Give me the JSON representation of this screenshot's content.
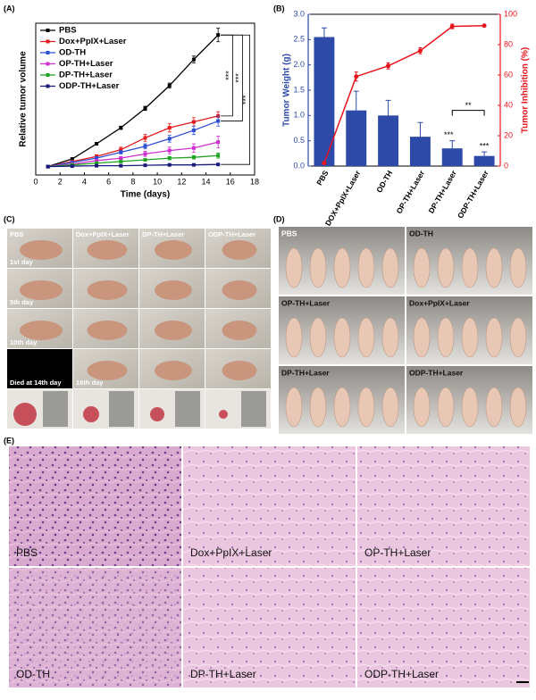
{
  "chart_data": [
    {
      "type": "line",
      "panel": "(A)",
      "xlabel": "Time (days)",
      "ylabel": "Relative tumor volume",
      "x": [
        1,
        3,
        5,
        7,
        9,
        11,
        13,
        15
      ],
      "xlim": [
        0,
        18
      ],
      "xticks": [
        0,
        2,
        4,
        6,
        8,
        10,
        12,
        14,
        16,
        18
      ],
      "ylim": [
        0,
        18
      ],
      "series": [
        {
          "name": "PBS",
          "color": "#000000",
          "values": [
            1,
            1.9,
            3.7,
            5.6,
            7.9,
            10.6,
            13.7,
            16.6
          ],
          "errors": [
            0.05,
            0.1,
            0.15,
            0.2,
            0.25,
            0.3,
            0.4,
            0.8
          ]
        },
        {
          "name": "Dox+PpIX+Laser",
          "color": "#e41a1c",
          "values": [
            1,
            1.6,
            2.2,
            3.0,
            4.4,
            5.6,
            6.3,
            7.0
          ],
          "errors": [
            0.05,
            0.1,
            0.2,
            0.3,
            0.4,
            0.5,
            0.5,
            0.5
          ]
        },
        {
          "name": "OD-TH",
          "color": "#2c4fd0",
          "values": [
            1,
            1.5,
            2.0,
            2.7,
            3.4,
            4.3,
            5.3,
            6.4
          ],
          "errors": [
            0.05,
            0.1,
            0.2,
            0.2,
            0.3,
            0.4,
            0.5,
            0.6
          ]
        },
        {
          "name": "OP-TH+Laser",
          "color": "#d030d0",
          "values": [
            1,
            1.3,
            1.7,
            2.0,
            2.5,
            2.9,
            3.2,
            3.9
          ],
          "errors": [
            0.05,
            0.1,
            0.15,
            0.2,
            0.3,
            0.4,
            0.5,
            0.7
          ]
        },
        {
          "name": "DP-TH+Laser",
          "color": "#1fa51f",
          "values": [
            1,
            1.2,
            1.4,
            1.6,
            1.8,
            2.0,
            2.1,
            2.3
          ],
          "errors": [
            0.05,
            0.05,
            0.1,
            0.1,
            0.15,
            0.2,
            0.2,
            0.3
          ]
        },
        {
          "name": "ODP-TH+Laser",
          "color": "#1a1a7a",
          "values": [
            1,
            1.05,
            1.1,
            1.1,
            1.15,
            1.2,
            1.2,
            1.25
          ],
          "errors": [
            0.03,
            0.03,
            0.05,
            0.05,
            0.05,
            0.05,
            0.05,
            0.05
          ]
        }
      ],
      "annotations": [
        "***",
        "***",
        "***"
      ]
    },
    {
      "type": "bar",
      "panel": "(B)",
      "ylabel": "Tumor Weight (g)",
      "y2label": "Tumor Inhibition (%)",
      "categories": [
        "PBS",
        "DOX+PpIX+Laser",
        "OD-TH",
        "OP-TH+Laser",
        "DP-TH+Laser",
        "ODP-TH+Laser"
      ],
      "ylim": [
        0,
        3.0
      ],
      "yticks": [
        {
          "value": 0,
          "label": "0.0"
        },
        0.5,
        {
          "value": 1,
          "label": "1.0"
        },
        1.5,
        {
          "value": 2,
          "label": "2.0"
        },
        2.5,
        {
          "value": 3,
          "label": "3.0"
        }
      ],
      "y2lim": [
        0,
        100
      ],
      "y2ticks": [
        0,
        20,
        40,
        60,
        80,
        100
      ],
      "series": [
        {
          "color": "#2e4aa8",
          "values": [
            2.55,
            1.1,
            1.0,
            0.58,
            0.35,
            0.2
          ],
          "errors": [
            0.18,
            0.38,
            0.3,
            0.28,
            0.15,
            0.08
          ]
        },
        {
          "type": "line",
          "axis": "y2",
          "color": "#e8141e",
          "values": [
            2,
            59,
            66,
            76,
            92,
            92.5
          ],
          "errors": [
            0,
            3,
            2,
            2,
            1.5,
            0.5
          ]
        }
      ],
      "annotations": [
        "**",
        "***",
        "***"
      ]
    }
  ],
  "panel_c": {
    "label": "(C)",
    "groups": [
      "PBS",
      "Dox+PpIX+Laser",
      "DP-TH+Laser",
      "ODP-TH+Laser"
    ],
    "days": [
      "1st day",
      "5th day",
      "10th day",
      "16th day"
    ],
    "died": "Died at 14th day"
  },
  "panel_d": {
    "label": "(D)",
    "groups": [
      "PBS",
      "OD-TH",
      "OP-TH+Laser",
      "Dox+PpIX+Laser",
      "DP-TH+Laser",
      "ODP-TH+Laser"
    ]
  },
  "panel_e": {
    "label": "(E)",
    "groups": [
      "PBS",
      "Dox+PpIX+Laser",
      "OP-TH+Laser",
      "OD-TH",
      "DP-TH+Laser",
      "ODP-TH+Laser"
    ]
  }
}
